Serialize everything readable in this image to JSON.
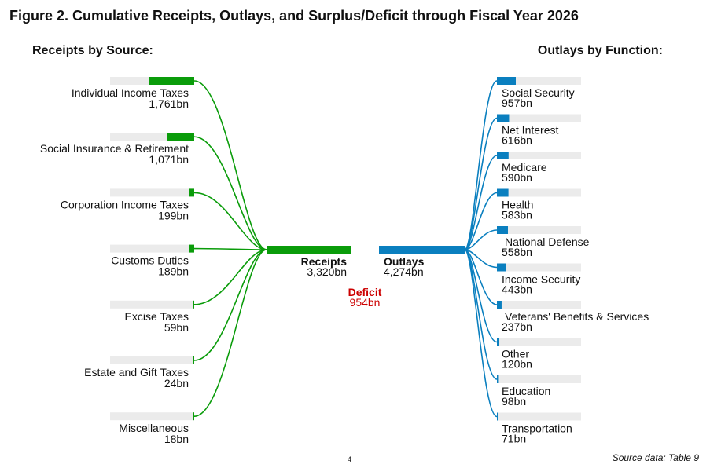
{
  "figure_title": "Figure 2. Cumulative Receipts, Outlays, and Surplus/Deficit through Fiscal Year 2026",
  "left_title": "Receipts by Source:",
  "right_title": "Outlays by Function:",
  "source_note": "Source data: Table 9",
  "page_number": "4",
  "colors": {
    "receipts": "#0a9c0a",
    "outlays": "#0a7fbf",
    "deficit": "#cc0000",
    "track": "#ebebeb"
  },
  "chart_data": {
    "type": "bar",
    "unit": "bn",
    "receipts": {
      "label": "Receipts",
      "total": 3320,
      "total_text": "3,320bn",
      "categories": [
        "Individual Income Taxes",
        "Social Insurance & Retirement",
        "Corporation Income Taxes",
        "Customs Duties",
        "Excise Taxes",
        "Estate and Gift Taxes",
        "Miscellaneous"
      ],
      "values": [
        1761,
        1071,
        199,
        189,
        59,
        24,
        18
      ],
      "value_labels": [
        "1,761bn",
        "1,071bn",
        "199bn",
        "189bn",
        "59bn",
        "24bn",
        "18bn"
      ]
    },
    "outlays": {
      "label": "Outlays",
      "total": 4274,
      "total_text": "4,274bn",
      "categories": [
        "Social Security",
        "Net Interest",
        "Medicare",
        "Health",
        "National Defense",
        "Income Security",
        "Veterans' Benefits & Services",
        "Other",
        "Education",
        "Transportation"
      ],
      "values": [
        957,
        616,
        590,
        583,
        558,
        443,
        237,
        120,
        98,
        71
      ],
      "value_labels": [
        "957bn",
        "616bn",
        "590bn",
        "583bn",
        "558bn",
        "443bn",
        "237bn",
        "120bn",
        "98bn",
        "71bn"
      ]
    },
    "deficit": {
      "label": "Deficit",
      "value": 954,
      "value_text": "954bn"
    }
  }
}
